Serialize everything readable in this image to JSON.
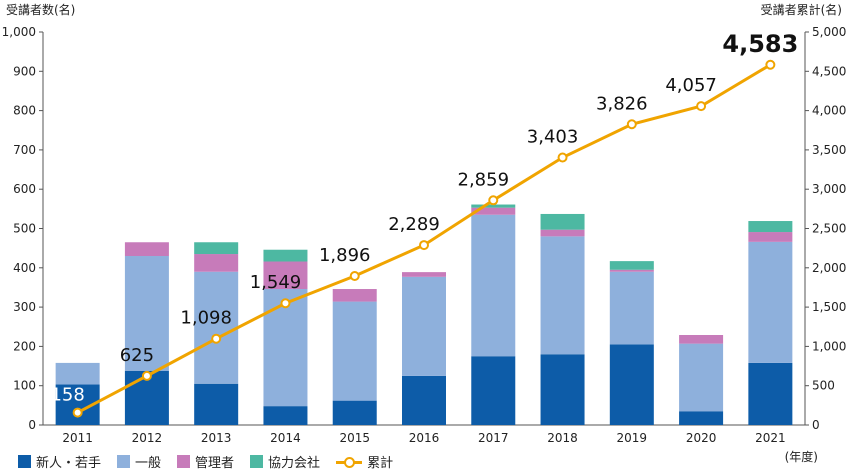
{
  "chart_data": {
    "type": "bar",
    "categories": [
      "2011",
      "2012",
      "2013",
      "2014",
      "2015",
      "2016",
      "2017",
      "2018",
      "2019",
      "2020",
      "2021"
    ],
    "series": [
      {
        "name": "新人・若手",
        "values": [
          103,
          138,
          105,
          48,
          62,
          125,
          175,
          180,
          205,
          35,
          158
        ]
      },
      {
        "name": "一般",
        "values": [
          55,
          292,
          285,
          298,
          252,
          252,
          360,
          300,
          185,
          172,
          308
        ]
      },
      {
        "name": "管理者",
        "values": [
          0,
          35,
          45,
          70,
          32,
          12,
          18,
          17,
          5,
          22,
          25
        ]
      },
      {
        "name": "協力会社",
        "values": [
          0,
          0,
          30,
          30,
          0,
          0,
          8,
          40,
          22,
          0,
          28
        ]
      }
    ],
    "cumulative": {
      "name": "累計",
      "type": "line",
      "values": [
        158,
        625,
        1098,
        1549,
        1896,
        2289,
        2859,
        3403,
        3826,
        4057,
        4583
      ],
      "labels": [
        "158",
        "625",
        "1,098",
        "1,549",
        "1,896",
        "2,289",
        "2,859",
        "3,403",
        "3,826",
        "4,057",
        "4,583"
      ]
    },
    "ylabel_left": "受講者数(名)",
    "ylabel_right": "受講者累計(名)",
    "xlabel": "(年度)",
    "ylim_left": [
      0,
      1000
    ],
    "ylim_right": [
      0,
      5000
    ],
    "yticks_left": [
      "0",
      "100",
      "200",
      "300",
      "400",
      "500",
      "600",
      "700",
      "800",
      "900",
      "1,000"
    ],
    "yticks_right": [
      "0",
      "500",
      "1,000",
      "1,500",
      "2,000",
      "2,500",
      "3,000",
      "3,500",
      "4,000",
      "4,500",
      "5,000"
    ],
    "colors": {
      "新人・若手": "#0d5ca8",
      "一般": "#8eb0dc",
      "管理者": "#c77bba",
      "協力会社": "#4db8a2",
      "累計": "#f0a400"
    },
    "grid": false,
    "legend_position": "bottom-left"
  }
}
